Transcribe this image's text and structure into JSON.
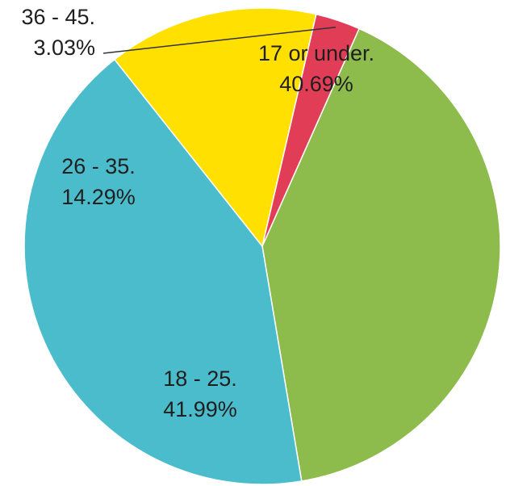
{
  "chart_data": {
    "type": "pie",
    "title": "",
    "slices": [
      {
        "category": "17 or under.",
        "value": 40.69,
        "value_label": "40.69%",
        "color": "#8DBB4C"
      },
      {
        "category": "18 - 25.",
        "value": 41.99,
        "value_label": "41.99%",
        "color": "#4BBCCB"
      },
      {
        "category": "26 - 35.",
        "value": 14.29,
        "value_label": "14.29%",
        "color": "#FFE000"
      },
      {
        "category": "36 - 45.",
        "value": 3.03,
        "value_label": "3.03%",
        "color": "#E23D57"
      }
    ],
    "start_angle_deg": 24,
    "direction": "clockwise",
    "legend": "none",
    "slice_border_color": "#ffffff"
  }
}
